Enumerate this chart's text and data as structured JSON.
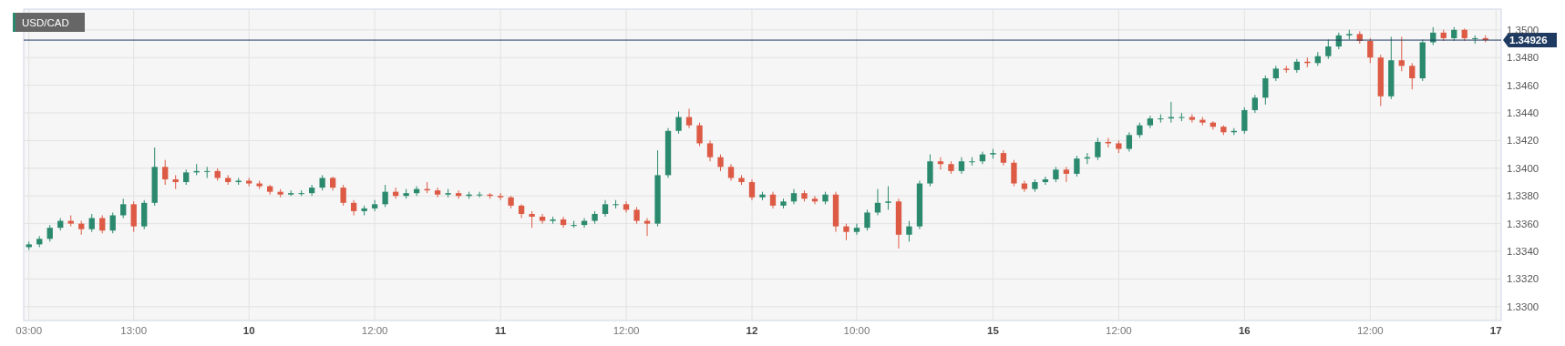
{
  "chart_data": {
    "type": "candlestick",
    "title": "USD/CAD",
    "categories": [
      "03:00",
      null,
      null,
      null,
      null,
      null,
      null,
      null,
      null,
      null,
      "13:00",
      null,
      null,
      null,
      null,
      null,
      null,
      null,
      null,
      null,
      null,
      "10",
      null,
      null,
      null,
      null,
      null,
      null,
      null,
      null,
      null,
      null,
      null,
      "12:00",
      null,
      null,
      null,
      null,
      null,
      null,
      null,
      null,
      null,
      null,
      null,
      "11",
      null,
      null,
      null,
      null,
      null,
      null,
      null,
      null,
      null,
      null,
      null,
      "12:00",
      null,
      null,
      null,
      null,
      null,
      null,
      null,
      null,
      null,
      null,
      null,
      "12",
      null,
      null,
      null,
      null,
      null,
      null,
      null,
      null,
      null,
      "10:00",
      null,
      null,
      null,
      null,
      null,
      null,
      null,
      null,
      null,
      null,
      null,
      null,
      "15",
      null,
      null,
      null,
      null,
      null,
      null,
      null,
      null,
      null,
      null,
      null,
      "12:00",
      null,
      null,
      null,
      null,
      null,
      null,
      null,
      null,
      null,
      null,
      null,
      "16",
      null,
      null,
      null,
      null,
      null,
      null,
      null,
      null,
      null,
      null,
      null,
      "12:00",
      null,
      null,
      null,
      null,
      null,
      null,
      null,
      null,
      null,
      null,
      null,
      "17"
    ],
    "ohlc": [
      [
        1.3343,
        1.3347,
        1.3341,
        1.3345
      ],
      [
        1.3345,
        1.3351,
        1.3343,
        1.3349
      ],
      [
        1.3349,
        1.3359,
        1.3347,
        1.3357
      ],
      [
        1.3357,
        1.3364,
        1.3355,
        1.3362
      ],
      [
        1.3362,
        1.3366,
        1.3358,
        1.336
      ],
      [
        1.336,
        1.3362,
        1.3352,
        1.3356
      ],
      [
        1.3356,
        1.3367,
        1.3354,
        1.3364
      ],
      [
        1.3364,
        1.3366,
        1.3353,
        1.3355
      ],
      [
        1.3355,
        1.3368,
        1.3353,
        1.3366
      ],
      [
        1.3366,
        1.3378,
        1.3364,
        1.3374
      ],
      [
        1.3374,
        1.3376,
        1.3354,
        1.3358
      ],
      [
        1.3358,
        1.3377,
        1.3356,
        1.3375
      ],
      [
        1.3375,
        1.3415,
        1.3373,
        1.3401
      ],
      [
        1.3401,
        1.3406,
        1.3388,
        1.3392
      ],
      [
        1.3392,
        1.3395,
        1.3385,
        1.339
      ],
      [
        1.339,
        1.3399,
        1.3388,
        1.3397
      ],
      [
        1.3397,
        1.3403,
        1.3395,
        1.3398
      ],
      [
        1.3398,
        1.3401,
        1.3393,
        1.3398
      ],
      [
        1.3398,
        1.34,
        1.3391,
        1.3393
      ],
      [
        1.3393,
        1.3395,
        1.3388,
        1.339
      ],
      [
        1.339,
        1.3393,
        1.3388,
        1.3391
      ],
      [
        1.3391,
        1.3393,
        1.3387,
        1.3389
      ],
      [
        1.3389,
        1.3391,
        1.3385,
        1.3387
      ],
      [
        1.3387,
        1.3388,
        1.3381,
        1.3383
      ],
      [
        1.3383,
        1.3385,
        1.3379,
        1.3381
      ],
      [
        1.3381,
        1.3384,
        1.338,
        1.3382
      ],
      [
        1.3382,
        1.3384,
        1.338,
        1.3382
      ],
      [
        1.3382,
        1.3388,
        1.338,
        1.3386
      ],
      [
        1.3386,
        1.3395,
        1.3384,
        1.3393
      ],
      [
        1.3393,
        1.3394,
        1.3384,
        1.3386
      ],
      [
        1.3386,
        1.3388,
        1.3373,
        1.3375
      ],
      [
        1.3375,
        1.3377,
        1.3366,
        1.3369
      ],
      [
        1.3369,
        1.3373,
        1.3366,
        1.3371
      ],
      [
        1.3371,
        1.3377,
        1.3369,
        1.3374
      ],
      [
        1.3374,
        1.3388,
        1.3372,
        1.3383
      ],
      [
        1.3383,
        1.3386,
        1.3378,
        1.338
      ],
      [
        1.338,
        1.3385,
        1.3378,
        1.3382
      ],
      [
        1.3382,
        1.3387,
        1.338,
        1.3385
      ],
      [
        1.3385,
        1.339,
        1.3382,
        1.3384
      ],
      [
        1.3384,
        1.3386,
        1.3379,
        1.3381
      ],
      [
        1.3381,
        1.3385,
        1.3379,
        1.3382
      ],
      [
        1.3382,
        1.3384,
        1.3378,
        1.338
      ],
      [
        1.338,
        1.3383,
        1.3378,
        1.3381
      ],
      [
        1.3381,
        1.3383,
        1.3379,
        1.3381
      ],
      [
        1.3381,
        1.3382,
        1.3378,
        1.338
      ],
      [
        1.338,
        1.3382,
        1.3377,
        1.3379
      ],
      [
        1.3379,
        1.338,
        1.3371,
        1.3373
      ],
      [
        1.3373,
        1.3374,
        1.3364,
        1.3367
      ],
      [
        1.3367,
        1.3369,
        1.3357,
        1.3365
      ],
      [
        1.3365,
        1.3367,
        1.336,
        1.3362
      ],
      [
        1.3362,
        1.3365,
        1.336,
        1.3363
      ],
      [
        1.3363,
        1.3365,
        1.3357,
        1.3359
      ],
      [
        1.3359,
        1.3362,
        1.3357,
        1.3359
      ],
      [
        1.3359,
        1.3364,
        1.3357,
        1.3362
      ],
      [
        1.3362,
        1.3369,
        1.336,
        1.3367
      ],
      [
        1.3367,
        1.3377,
        1.3365,
        1.3374
      ],
      [
        1.3374,
        1.3377,
        1.3371,
        1.3374
      ],
      [
        1.3374,
        1.3376,
        1.3368,
        1.337
      ],
      [
        1.337,
        1.3372,
        1.336,
        1.3362
      ],
      [
        1.3362,
        1.3364,
        1.3351,
        1.336
      ],
      [
        1.336,
        1.3413,
        1.3358,
        1.3395
      ],
      [
        1.3395,
        1.3429,
        1.3393,
        1.3427
      ],
      [
        1.3427,
        1.3441,
        1.3425,
        1.3437
      ],
      [
        1.3437,
        1.3443,
        1.3429,
        1.3431
      ],
      [
        1.3431,
        1.3433,
        1.3416,
        1.3418
      ],
      [
        1.3418,
        1.342,
        1.3405,
        1.3408
      ],
      [
        1.3408,
        1.341,
        1.3398,
        1.3401
      ],
      [
        1.3401,
        1.3403,
        1.3391,
        1.3393
      ],
      [
        1.3393,
        1.3395,
        1.3388,
        1.339
      ],
      [
        1.339,
        1.3392,
        1.3377,
        1.3379
      ],
      [
        1.3379,
        1.3383,
        1.3377,
        1.3381
      ],
      [
        1.3381,
        1.3383,
        1.3371,
        1.3373
      ],
      [
        1.3373,
        1.3378,
        1.3371,
        1.3376
      ],
      [
        1.3376,
        1.3385,
        1.3374,
        1.3382
      ],
      [
        1.3382,
        1.3384,
        1.3376,
        1.3378
      ],
      [
        1.3378,
        1.338,
        1.3374,
        1.3376
      ],
      [
        1.3376,
        1.3383,
        1.3374,
        1.3381
      ],
      [
        1.3381,
        1.3383,
        1.3354,
        1.3358
      ],
      [
        1.3358,
        1.336,
        1.3348,
        1.3354
      ],
      [
        1.3354,
        1.336,
        1.3352,
        1.3357
      ],
      [
        1.3357,
        1.337,
        1.3355,
        1.3368
      ],
      [
        1.3368,
        1.3385,
        1.3366,
        1.3375
      ],
      [
        1.3375,
        1.3387,
        1.337,
        1.3376
      ],
      [
        1.3376,
        1.3378,
        1.3342,
        1.3352
      ],
      [
        1.3352,
        1.3362,
        1.3347,
        1.3358
      ],
      [
        1.3358,
        1.3391,
        1.3356,
        1.3389
      ],
      [
        1.3389,
        1.341,
        1.3387,
        1.3405
      ],
      [
        1.3405,
        1.3408,
        1.3399,
        1.3403
      ],
      [
        1.3403,
        1.3405,
        1.3396,
        1.3398
      ],
      [
        1.3398,
        1.3408,
        1.3396,
        1.3405
      ],
      [
        1.3405,
        1.3408,
        1.3402,
        1.3405
      ],
      [
        1.3405,
        1.3412,
        1.3403,
        1.341
      ],
      [
        1.341,
        1.3414,
        1.3407,
        1.3411
      ],
      [
        1.3411,
        1.3413,
        1.3402,
        1.3404
      ],
      [
        1.3404,
        1.3406,
        1.3387,
        1.3389
      ],
      [
        1.3389,
        1.3391,
        1.3383,
        1.3385
      ],
      [
        1.3385,
        1.3392,
        1.3383,
        1.339
      ],
      [
        1.339,
        1.3394,
        1.3388,
        1.3392
      ],
      [
        1.3392,
        1.3401,
        1.339,
        1.3399
      ],
      [
        1.3399,
        1.3401,
        1.339,
        1.3396
      ],
      [
        1.3396,
        1.3409,
        1.3394,
        1.3407
      ],
      [
        1.3407,
        1.3411,
        1.3403,
        1.3408
      ],
      [
        1.3408,
        1.3422,
        1.3406,
        1.3419
      ],
      [
        1.3419,
        1.3422,
        1.3415,
        1.3418
      ],
      [
        1.3418,
        1.342,
        1.3411,
        1.3414
      ],
      [
        1.3414,
        1.3426,
        1.3412,
        1.3424
      ],
      [
        1.3424,
        1.3433,
        1.3422,
        1.3431
      ],
      [
        1.3431,
        1.3438,
        1.3429,
        1.3436
      ],
      [
        1.3436,
        1.3439,
        1.3433,
        1.3436
      ],
      [
        1.3436,
        1.3448,
        1.3433,
        1.3437
      ],
      [
        1.3437,
        1.344,
        1.3434,
        1.3437
      ],
      [
        1.3437,
        1.3439,
        1.3433,
        1.3435
      ],
      [
        1.3435,
        1.3437,
        1.3431,
        1.3433
      ],
      [
        1.3433,
        1.3434,
        1.3428,
        1.343
      ],
      [
        1.343,
        1.3431,
        1.3424,
        1.3426
      ],
      [
        1.3426,
        1.3429,
        1.3424,
        1.3427
      ],
      [
        1.3427,
        1.3444,
        1.3425,
        1.3442
      ],
      [
        1.3442,
        1.3453,
        1.344,
        1.3451
      ],
      [
        1.3451,
        1.3467,
        1.3446,
        1.3465
      ],
      [
        1.3465,
        1.3474,
        1.3463,
        1.3472
      ],
      [
        1.3472,
        1.3474,
        1.3469,
        1.3471
      ],
      [
        1.3471,
        1.3479,
        1.3469,
        1.3477
      ],
      [
        1.3477,
        1.348,
        1.3473,
        1.3476
      ],
      [
        1.3476,
        1.3484,
        1.3474,
        1.3481
      ],
      [
        1.3481,
        1.3493,
        1.3479,
        1.3488
      ],
      [
        1.3488,
        1.3498,
        1.3486,
        1.3496
      ],
      [
        1.3496,
        1.35,
        1.3493,
        1.3497
      ],
      [
        1.3497,
        1.3499,
        1.349,
        1.3492
      ],
      [
        1.3492,
        1.3494,
        1.3476,
        1.348
      ],
      [
        1.348,
        1.3482,
        1.3445,
        1.3452
      ],
      [
        1.3452,
        1.3495,
        1.345,
        1.3478
      ],
      [
        1.3478,
        1.3495,
        1.347,
        1.3474
      ],
      [
        1.3474,
        1.3476,
        1.3457,
        1.3465
      ],
      [
        1.3465,
        1.3493,
        1.3463,
        1.3491
      ],
      [
        1.3491,
        1.3502,
        1.3489,
        1.3498
      ],
      [
        1.3498,
        1.35,
        1.3492,
        1.3494
      ],
      [
        1.3494,
        1.3502,
        1.3492,
        1.35
      ],
      [
        1.35,
        1.3501,
        1.3492,
        1.3494
      ],
      [
        1.3494,
        1.3496,
        1.349,
        1.3494
      ],
      [
        1.3494,
        1.3496,
        1.3491,
        1.34926
      ],
      null
    ],
    "ylim": [
      1.329,
      1.3515
    ],
    "yticks": [
      {
        "value": 1.33,
        "label": "1.3300"
      },
      {
        "value": 1.332,
        "label": "1.3320"
      },
      {
        "value": 1.334,
        "label": "1.3340"
      },
      {
        "value": 1.336,
        "label": "1.3360"
      },
      {
        "value": 1.338,
        "label": "1.3380"
      },
      {
        "value": 1.34,
        "label": "1.3400"
      },
      {
        "value": 1.342,
        "label": "1.3420"
      },
      {
        "value": 1.344,
        "label": "1.3440"
      },
      {
        "value": 1.346,
        "label": "1.3460"
      },
      {
        "value": 1.348,
        "label": "1.3480"
      },
      {
        "value": 1.35,
        "label": "1.3500"
      }
    ],
    "grid": true,
    "ref_lines": [
      {
        "axis": "y",
        "value": 1.34926,
        "label": "1.34926",
        "color": "#1f3a60"
      }
    ]
  }
}
